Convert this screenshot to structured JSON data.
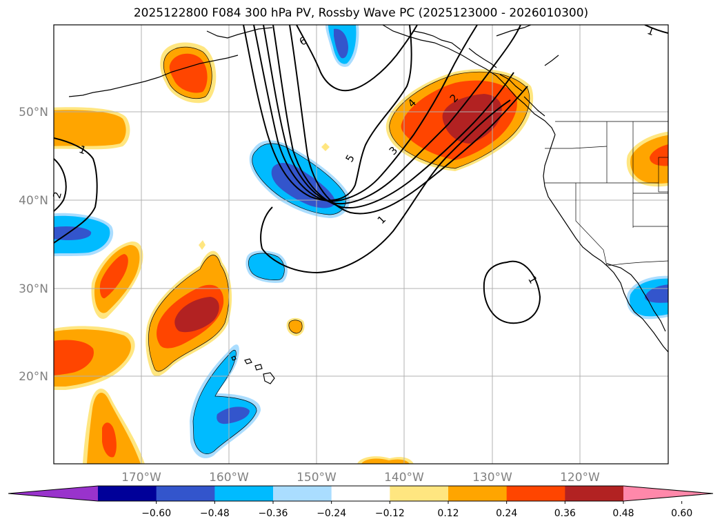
{
  "title": "2025122800 F084 300 hPa PV, Rossby Wave PC (2025123000 - 2026010300)",
  "lat_labels": [
    "50°N",
    "40°N",
    "30°N",
    "20°N"
  ],
  "lon_labels": [
    "170°W",
    "160°W",
    "150°W",
    "140°W",
    "130°W",
    "120°W"
  ],
  "colorbar": {
    "colors": [
      "#9933cc",
      "#000099",
      "#3355cc",
      "#00bbff",
      "#aaddff",
      "#ffffff",
      "#ffe680",
      "#ffa500",
      "#ff4500",
      "#b22222",
      "#ff88aa"
    ],
    "tick_labels": [
      "−0.60",
      "−0.48",
      "−0.36",
      "−0.24",
      "−0.12",
      "0.12",
      "0.24",
      "0.36",
      "0.48",
      "0.60"
    ]
  },
  "contour_labels": [
    "1",
    "2",
    "3",
    "4",
    "5",
    "6",
    "1",
    "1",
    "1",
    "2"
  ]
}
